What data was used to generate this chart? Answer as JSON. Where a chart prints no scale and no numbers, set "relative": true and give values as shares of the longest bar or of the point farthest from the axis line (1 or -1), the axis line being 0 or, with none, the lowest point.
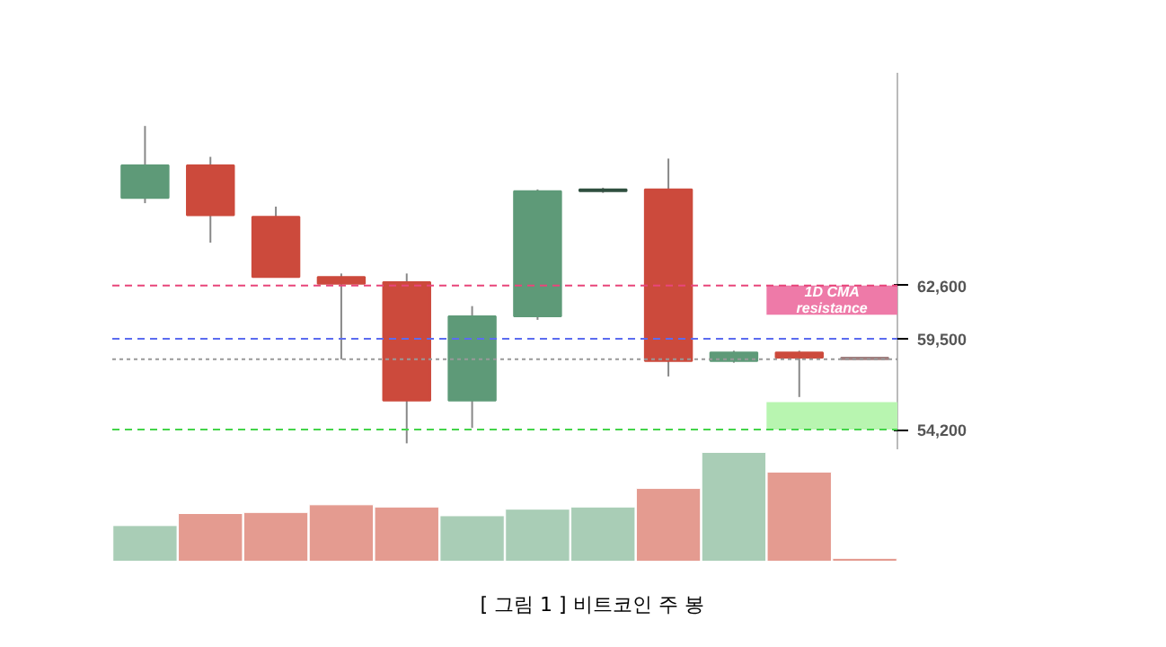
{
  "chart_data": [
    {
      "type": "candlestick",
      "title": "[ 그림 1 ] 비트코인 주 봉",
      "categories": [
        null,
        null,
        null,
        null,
        null,
        null,
        null,
        null,
        null,
        null,
        null,
        null
      ],
      "ohlc": [
        [
          67700,
          71900,
          67400,
          69600
        ],
        [
          69600,
          70100,
          65100,
          66700
        ],
        [
          66600,
          67200,
          63100,
          63100
        ],
        [
          63100,
          63300,
          58300,
          62700
        ],
        [
          62800,
          63300,
          53400,
          55900
        ],
        [
          55900,
          61400,
          54300,
          60800
        ],
        [
          60800,
          68200,
          60600,
          68100
        ],
        [
          68100,
          68300,
          68000,
          68200
        ],
        [
          68200,
          70000,
          57300,
          58200
        ],
        [
          58200,
          58800,
          58100,
          58700
        ],
        [
          58700,
          58800,
          56100,
          58400
        ],
        [
          58400,
          58400,
          58300,
          58300
        ]
      ],
      "colors": [
        "#5e9a78",
        "#cc4a3c",
        "#cc4a3c",
        "#cc4a3c",
        "#cc4a3c",
        "#5e9a78",
        "#5e9a78",
        "#2f4f3f",
        "#cc4a3c",
        "#5e9a78",
        "#cc4a3c",
        "#a08080"
      ],
      "ylim": [
        53000,
        75000
      ],
      "yticks": [
        {
          "value": 54200,
          "label": "54,200"
        },
        {
          "value": 59500,
          "label": "59,500"
        },
        {
          "value": 62600,
          "label": "62,600"
        }
      ],
      "tick_labels": "y",
      "grid": false,
      "ref_lines": [
        {
          "axis": "y",
          "value": 62600,
          "color": "#e8457a",
          "line_style": "dashed"
        },
        {
          "axis": "y",
          "value": 59500,
          "color": "#5b6cf0",
          "line_style": "dashed"
        },
        {
          "axis": "y",
          "value": 54200,
          "color": "#44d44a",
          "line_style": "dashed"
        },
        {
          "axis": "y",
          "value": 58300,
          "color": "#999999",
          "line_style": "dotted"
        }
      ],
      "bands": [
        {
          "axis": "y",
          "from": 60900,
          "to": 62600,
          "label": "1D CMA resistance",
          "color": "#ee7aa8"
        },
        {
          "axis": "y",
          "from": 54200,
          "to": 55800,
          "color": "#b8f5b0"
        }
      ]
    },
    {
      "type": "bar",
      "relative": true,
      "grid": false,
      "categories": [
        null,
        null,
        null,
        null,
        null,
        null,
        null,
        null,
        null,
        null,
        null,
        null
      ],
      "values": [
        0.33,
        0.44,
        0.45,
        0.52,
        0.5,
        0.42,
        0.48,
        0.5,
        0.67,
        1,
        0.82,
        0.03
      ],
      "colors": [
        "#a9cdb6",
        "#e49b90",
        "#e49b90",
        "#e49b90",
        "#e49b90",
        "#a9cdb6",
        "#a9cdb6",
        "#a9cdb6",
        "#e49b90",
        "#a9cdb6",
        "#e49b90",
        "#e49b90"
      ]
    }
  ]
}
